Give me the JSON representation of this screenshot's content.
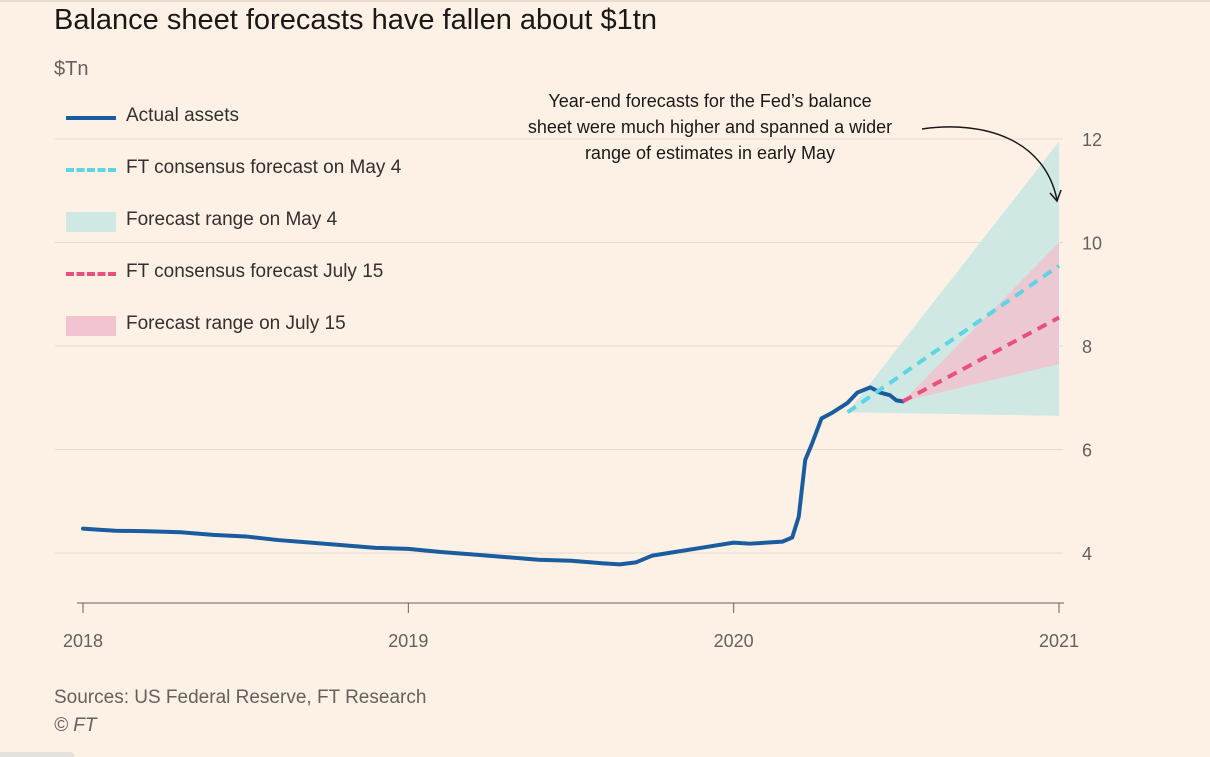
{
  "title": "Balance sheet forecasts have fallen about $1tn",
  "unit_label": "$Tn",
  "legend": [
    {
      "label": "Actual assets",
      "style": "solid",
      "color": "#1a5c9e"
    },
    {
      "label": "FT consensus forecast on May 4",
      "style": "dashed",
      "color": "#5fd4e4"
    },
    {
      "label": "Forecast range on May 4",
      "style": "band",
      "color": "#cfe8e3"
    },
    {
      "label": "FT consensus forecast July 15",
      "style": "dashed",
      "color": "#e8507e"
    },
    {
      "label": "Forecast range on July 15",
      "style": "band",
      "color": "#f1c2cf"
    }
  ],
  "annotation": {
    "lines": [
      "Year-end forecasts for the Fed’s balance",
      "sheet were much higher and spanned a wider",
      "range of estimates in early May"
    ]
  },
  "sources": "Sources: US Federal Reserve, FT Research",
  "copyright": "© FT",
  "chart_data": {
    "type": "line",
    "title": "Balance sheet forecasts have fallen about $1tn",
    "ylabel": "$Tn",
    "xlim": [
      2018.0,
      2021.0
    ],
    "ylim": [
      3.0,
      12.5
    ],
    "yticks": [
      4,
      6,
      8,
      10,
      12
    ],
    "xticks": [
      2018,
      2019,
      2020,
      2021
    ],
    "xtick_labels": [
      "2018",
      "2019",
      "2020",
      "2021"
    ],
    "ytick_labels": [
      "4",
      "6",
      "8",
      "10",
      "12"
    ],
    "grid": true,
    "series": [
      {
        "name": "Actual assets",
        "color": "#1a5c9e",
        "x": [
          2018.0,
          2018.05,
          2018.1,
          2018.2,
          2018.3,
          2018.4,
          2018.5,
          2018.6,
          2018.7,
          2018.8,
          2018.9,
          2019.0,
          2019.1,
          2019.2,
          2019.3,
          2019.4,
          2019.5,
          2019.6,
          2019.65,
          2019.7,
          2019.75,
          2019.8,
          2019.9,
          2020.0,
          2020.05,
          2020.1,
          2020.15,
          2020.18,
          2020.2,
          2020.22,
          2020.24,
          2020.27,
          2020.3,
          2020.35,
          2020.38,
          2020.42,
          2020.45,
          2020.48,
          2020.5,
          2020.52
        ],
        "values": [
          4.47,
          4.45,
          4.43,
          4.42,
          4.4,
          4.35,
          4.32,
          4.25,
          4.2,
          4.15,
          4.1,
          4.08,
          4.02,
          3.97,
          3.92,
          3.87,
          3.85,
          3.8,
          3.78,
          3.82,
          3.95,
          4.0,
          4.1,
          4.2,
          4.18,
          4.2,
          4.22,
          4.3,
          4.7,
          5.8,
          6.1,
          6.6,
          6.7,
          6.9,
          7.1,
          7.2,
          7.1,
          7.05,
          6.95,
          6.93
        ]
      },
      {
        "name": "FT consensus forecast on May 4",
        "color": "#5fd4e4",
        "style": "dashed",
        "x": [
          2020.35,
          2021.0
        ],
        "values": [
          6.72,
          9.55
        ]
      },
      {
        "name": "FT consensus forecast July 15",
        "color": "#e8507e",
        "style": "dashed",
        "x": [
          2020.52,
          2021.0
        ],
        "values": [
          6.93,
          8.55
        ]
      }
    ],
    "bands": [
      {
        "name": "Forecast range on May 4",
        "color": "#cfe8e3",
        "x": [
          2020.35,
          2021.0
        ],
        "lower": [
          6.72,
          6.65
        ],
        "upper": [
          6.72,
          11.95
        ]
      },
      {
        "name": "Forecast range on July 15",
        "color": "#f1c2cf",
        "x": [
          2020.52,
          2021.0
        ],
        "lower": [
          6.93,
          7.65
        ],
        "upper": [
          6.93,
          10.0
        ]
      }
    ]
  }
}
